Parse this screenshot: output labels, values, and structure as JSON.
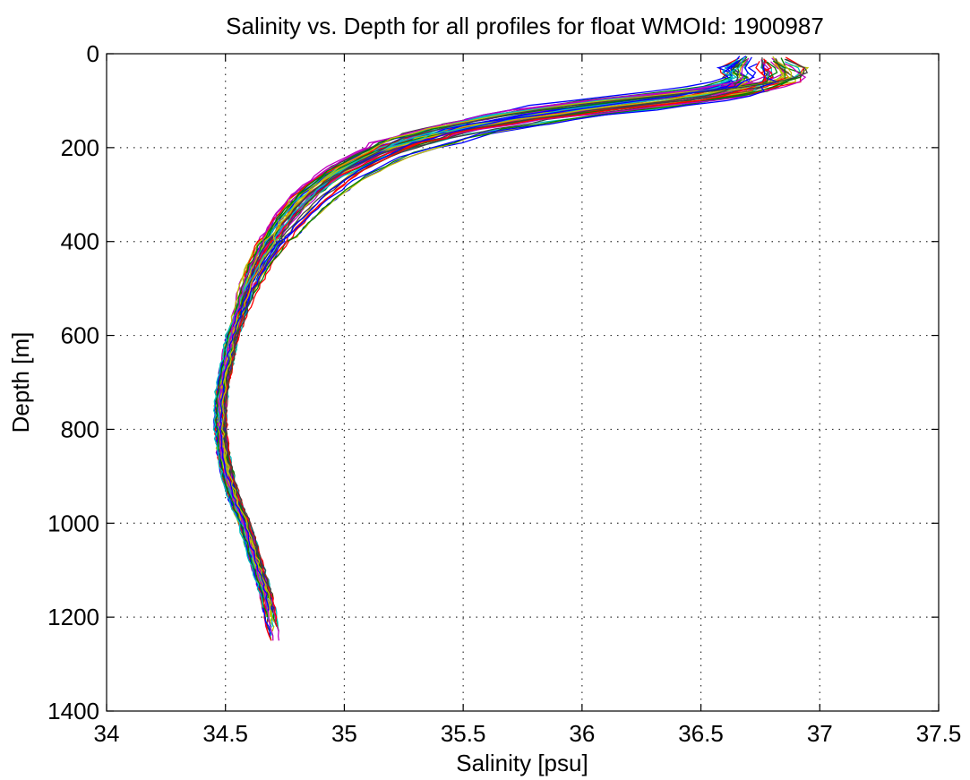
{
  "chart_data": {
    "type": "line",
    "title": "Salinity vs. Depth for all profiles for float WMOId: 1900987",
    "xlabel": "Salinity [psu]",
    "ylabel": "Depth [m]",
    "xlim": [
      34,
      37.5
    ],
    "ylim": [
      0,
      1400
    ],
    "y_reversed": true,
    "grid": true,
    "x_ticks": [
      "34",
      "34.5",
      "35",
      "35.5",
      "36",
      "36.5",
      "37",
      "37.5"
    ],
    "y_ticks": [
      "0",
      "200",
      "400",
      "600",
      "800",
      "1000",
      "1200",
      "1400"
    ],
    "series_count": 50,
    "mean_profile": {
      "depth": [
        5,
        25,
        50,
        70,
        90,
        110,
        130,
        150,
        175,
        200,
        250,
        300,
        350,
        400,
        450,
        500,
        550,
        600,
        650,
        700,
        750,
        800,
        850,
        900,
        950,
        1000,
        1050,
        1100,
        1150,
        1200,
        1250
      ],
      "salinity": [
        36.72,
        36.75,
        36.78,
        36.7,
        36.45,
        36.1,
        35.8,
        35.55,
        35.35,
        35.18,
        34.98,
        34.85,
        34.76,
        34.69,
        34.63,
        34.59,
        34.56,
        34.53,
        34.51,
        34.49,
        34.48,
        34.48,
        34.49,
        34.51,
        34.54,
        34.58,
        34.61,
        34.64,
        34.67,
        34.69,
        34.71
      ]
    },
    "colors": [
      "#0000ff",
      "#008000",
      "#ff0000",
      "#00bfbf",
      "#bf00bf",
      "#bfbf00",
      "#404040"
    ]
  }
}
